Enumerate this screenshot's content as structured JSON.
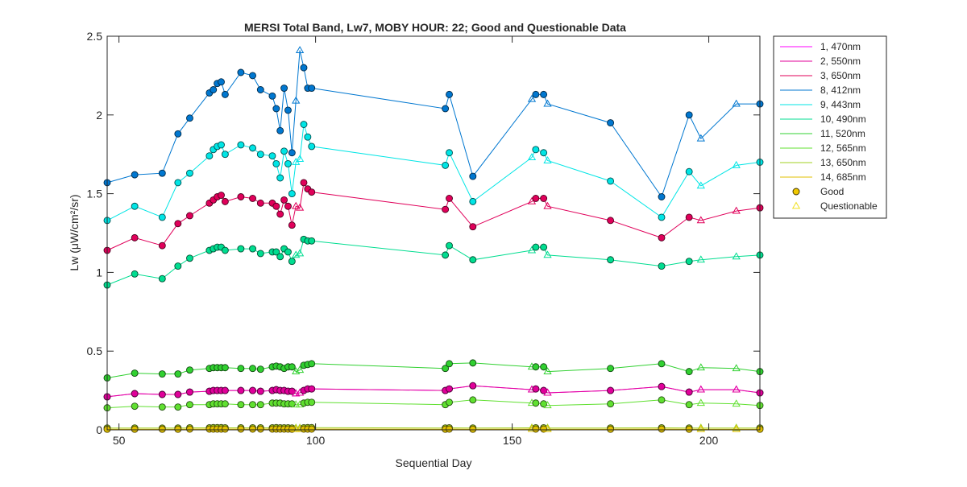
{
  "chart_data": {
    "type": "line",
    "title": "MERSI Total Band,  Lw7, MOBY HOUR: 22;  Good and Questionable Data",
    "xlabel": "Sequential Day",
    "ylabel": "Lw (μW/cm²/sr)",
    "xlim": [
      47,
      213
    ],
    "ylim": [
      0,
      2.5
    ],
    "xticks": [
      50,
      100,
      150,
      200
    ],
    "yticks": [
      0,
      0.5,
      1,
      1.5,
      2,
      2.5
    ],
    "xtick_labels": [
      "50",
      "100",
      "150",
      "200"
    ],
    "ytick_labels": [
      "0",
      "0.5",
      "1",
      "1.5",
      "2",
      "2.5"
    ],
    "grid": false,
    "legend_position": "outside-right-top",
    "x": [
      47,
      54,
      61,
      65,
      68,
      73,
      74,
      75,
      76,
      77,
      81,
      84,
      86,
      89,
      90,
      91,
      92,
      93,
      94,
      95,
      96,
      97,
      98,
      99,
      133,
      134,
      140,
      155,
      156,
      158,
      159,
      175,
      188,
      195,
      198,
      207,
      213
    ],
    "questionable": [
      false,
      false,
      false,
      false,
      false,
      false,
      false,
      false,
      false,
      false,
      false,
      false,
      false,
      false,
      false,
      false,
      false,
      false,
      false,
      true,
      true,
      false,
      false,
      false,
      false,
      false,
      false,
      true,
      false,
      false,
      true,
      false,
      false,
      false,
      true,
      true,
      false
    ],
    "series": [
      {
        "name": "1, 470nm",
        "color": "#ff00ff",
        "values": [
          0.21,
          0.23,
          0.225,
          0.225,
          0.24,
          0.245,
          0.25,
          0.25,
          0.25,
          0.25,
          0.25,
          0.25,
          0.245,
          0.25,
          0.255,
          0.25,
          0.25,
          0.245,
          0.245,
          0.23,
          0.235,
          0.25,
          0.26,
          0.26,
          0.25,
          0.26,
          0.28,
          0.255,
          0.26,
          0.25,
          0.235,
          0.25,
          0.275,
          0.24,
          0.255,
          0.255,
          0.235
        ]
      },
      {
        "name": "2, 550nm",
        "color": "#e0009a",
        "values": [
          0.21,
          0.23,
          0.225,
          0.225,
          0.24,
          0.245,
          0.25,
          0.25,
          0.25,
          0.25,
          0.25,
          0.25,
          0.245,
          0.25,
          0.255,
          0.25,
          0.25,
          0.245,
          0.245,
          0.23,
          0.235,
          0.25,
          0.26,
          0.26,
          0.25,
          0.26,
          0.28,
          0.255,
          0.26,
          0.25,
          0.235,
          0.25,
          0.275,
          0.24,
          0.255,
          0.255,
          0.235
        ]
      },
      {
        "name": "3, 650nm",
        "color": "#e0005a",
        "values": [
          1.14,
          1.22,
          1.17,
          1.31,
          1.36,
          1.44,
          1.46,
          1.48,
          1.49,
          1.45,
          1.48,
          1.47,
          1.44,
          1.44,
          1.42,
          1.37,
          1.46,
          1.42,
          1.3,
          1.42,
          1.41,
          1.57,
          1.53,
          1.51,
          1.4,
          1.47,
          1.29,
          1.45,
          1.47,
          1.47,
          1.42,
          1.33,
          1.22,
          1.35,
          1.33,
          1.39,
          1.41
        ]
      },
      {
        "name": "8, 412nm",
        "color": "#0077d0",
        "values": [
          1.57,
          1.62,
          1.63,
          1.88,
          1.98,
          2.14,
          2.16,
          2.2,
          2.21,
          2.13,
          2.27,
          2.25,
          2.16,
          2.12,
          2.04,
          1.9,
          2.17,
          2.03,
          1.76,
          2.09,
          2.41,
          2.3,
          2.17,
          2.17,
          2.04,
          2.13,
          1.61,
          2.1,
          2.13,
          2.13,
          2.07,
          1.95,
          1.48,
          2.0,
          1.85,
          2.07,
          2.07
        ]
      },
      {
        "name": "9, 443nm",
        "color": "#00e5e5",
        "values": [
          1.33,
          1.42,
          1.35,
          1.57,
          1.63,
          1.74,
          1.78,
          1.8,
          1.81,
          1.75,
          1.81,
          1.79,
          1.75,
          1.74,
          1.69,
          1.6,
          1.77,
          1.69,
          1.5,
          1.7,
          1.72,
          1.94,
          1.86,
          1.8,
          1.68,
          1.76,
          1.45,
          1.73,
          1.78,
          1.76,
          1.71,
          1.58,
          1.35,
          1.64,
          1.55,
          1.68,
          1.7
        ]
      },
      {
        "name": "10, 490nm",
        "color": "#00dd90",
        "values": [
          0.92,
          0.99,
          0.96,
          1.04,
          1.09,
          1.14,
          1.15,
          1.16,
          1.16,
          1.14,
          1.15,
          1.15,
          1.12,
          1.13,
          1.13,
          1.1,
          1.15,
          1.13,
          1.07,
          1.11,
          1.12,
          1.21,
          1.2,
          1.2,
          1.11,
          1.17,
          1.08,
          1.14,
          1.16,
          1.16,
          1.11,
          1.08,
          1.04,
          1.07,
          1.08,
          1.1,
          1.11
        ]
      },
      {
        "name": "11, 520nm",
        "color": "#30d030",
        "values": [
          0.33,
          0.36,
          0.355,
          0.355,
          0.38,
          0.39,
          0.395,
          0.395,
          0.395,
          0.395,
          0.39,
          0.39,
          0.385,
          0.4,
          0.405,
          0.4,
          0.39,
          0.4,
          0.4,
          0.37,
          0.38,
          0.41,
          0.415,
          0.42,
          0.39,
          0.42,
          0.425,
          0.4,
          0.4,
          0.4,
          0.37,
          0.39,
          0.42,
          0.37,
          0.395,
          0.39,
          0.37
        ]
      },
      {
        "name": "12, 565nm",
        "color": "#60e030",
        "values": [
          0.14,
          0.15,
          0.145,
          0.145,
          0.16,
          0.16,
          0.165,
          0.165,
          0.165,
          0.165,
          0.16,
          0.16,
          0.16,
          0.17,
          0.17,
          0.17,
          0.165,
          0.165,
          0.165,
          0.16,
          0.16,
          0.17,
          0.175,
          0.175,
          0.16,
          0.175,
          0.19,
          0.17,
          0.17,
          0.165,
          0.155,
          0.165,
          0.19,
          0.16,
          0.17,
          0.165,
          0.155
        ]
      },
      {
        "name": "13, 650nm",
        "color": "#a0d020",
        "values": [
          0.012,
          0.012,
          0.011,
          0.012,
          0.013,
          0.013,
          0.014,
          0.014,
          0.014,
          0.013,
          0.013,
          0.013,
          0.013,
          0.013,
          0.014,
          0.013,
          0.013,
          0.013,
          0.012,
          0.012,
          0.012,
          0.013,
          0.014,
          0.014,
          0.012,
          0.013,
          0.012,
          0.013,
          0.013,
          0.013,
          0.012,
          0.012,
          0.013,
          0.012,
          0.012,
          0.012,
          0.012
        ]
      },
      {
        "name": "14, 685nm",
        "color": "#e0c000",
        "values": [
          0.004,
          0.004,
          0.004,
          0.004,
          0.005,
          0.005,
          0.005,
          0.005,
          0.005,
          0.005,
          0.005,
          0.005,
          0.005,
          0.005,
          0.005,
          0.005,
          0.005,
          0.005,
          0.004,
          0.004,
          0.004,
          0.005,
          0.005,
          0.005,
          0.004,
          0.005,
          0.004,
          0.005,
          0.005,
          0.005,
          0.004,
          0.004,
          0.005,
          0.004,
          0.004,
          0.004,
          0.004
        ]
      }
    ],
    "legend_extra": [
      {
        "name": "Good",
        "marker": "circle",
        "color": "#f0c800"
      },
      {
        "name": "Questionable",
        "marker": "triangle",
        "color": "#f0e020"
      }
    ]
  }
}
